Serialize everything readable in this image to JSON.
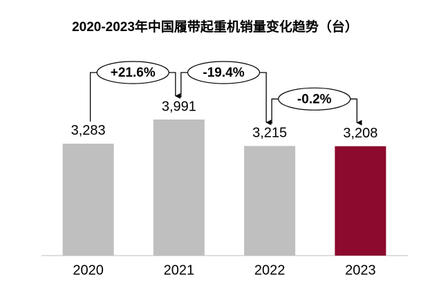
{
  "chart_data": {
    "type": "bar",
    "title": "2020-2023年中国履带起重机销量变化趋势（台）",
    "categories": [
      "2020",
      "2021",
      "2022",
      "2023"
    ],
    "values": [
      3283,
      3991,
      3215,
      3208
    ],
    "value_labels": [
      "3,283",
      "3,991",
      "3,215",
      "3,208"
    ],
    "colors": [
      "#bfbfbf",
      "#bfbfbf",
      "#bfbfbf",
      "#8b0a2e"
    ],
    "annotations": [
      "+21.6%",
      "-19.4%",
      "-0.2%"
    ]
  }
}
